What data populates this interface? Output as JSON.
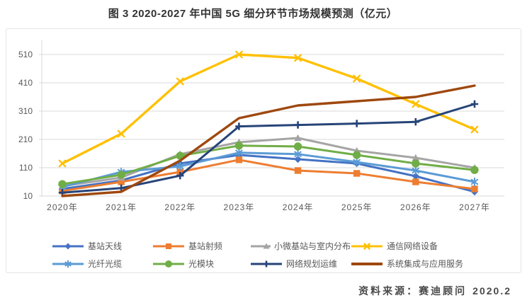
{
  "title": "图 3 2020-2027 年中国 5G 细分环节市场规模预测（亿元）",
  "source": {
    "prefix": "资料来源：",
    "org": "赛迪顾问",
    "date": "2020.2"
  },
  "chart_data": {
    "type": "line",
    "title": "图 3 2020-2027 年中国 5G 细分环节市场规模预测（亿元）",
    "unit": "亿元",
    "categories": [
      "2020年",
      "2021年",
      "2022年",
      "2023年",
      "2024年",
      "2025年",
      "2026年",
      "2027年"
    ],
    "y_ticks": [
      10,
      110,
      210,
      310,
      410,
      510
    ],
    "ylim": [
      10,
      560
    ],
    "grid": true,
    "legend_position": "bottom",
    "axis_color": "#d9d9d9",
    "series": [
      {
        "id": "base-station-antenna",
        "name": "基站天线",
        "color": "#4472C4",
        "marker": "diamond",
        "values": [
          35,
          65,
          125,
          155,
          140,
          125,
          80,
          25
        ]
      },
      {
        "id": "base-station-rf",
        "name": "基站射频",
        "color": "#ED7D31",
        "marker": "square",
        "values": [
          28,
          60,
          95,
          138,
          100,
          90,
          60,
          35
        ]
      },
      {
        "id": "small-micro-station-indoor",
        "name": "小微基站与室内分布",
        "color": "#A5A5A5",
        "marker": "triangle",
        "values": [
          45,
          75,
          158,
          200,
          215,
          170,
          145,
          110
        ]
      },
      {
        "id": "network-equipment",
        "name": "通信网络设备",
        "color": "#FFC000",
        "marker": "x",
        "values": [
          125,
          230,
          415,
          510,
          498,
          425,
          335,
          245
        ]
      },
      {
        "id": "optical-fiber-cable",
        "name": "光纤光缆",
        "color": "#5B9BD5",
        "marker": "asterisk",
        "values": [
          42,
          95,
          115,
          163,
          158,
          130,
          100,
          60
        ]
      },
      {
        "id": "optical-module",
        "name": "光模块",
        "color": "#70AD47",
        "marker": "circle",
        "values": [
          52,
          85,
          152,
          188,
          185,
          155,
          125,
          102
        ]
      },
      {
        "id": "network-planning-om",
        "name": "网络规划运维",
        "color": "#264478",
        "marker": "plus",
        "values": [
          22,
          38,
          82,
          256,
          261,
          266,
          272,
          335
        ]
      },
      {
        "id": "system-integration-services",
        "name": "系统集成与应用服务",
        "color": "#9E480E",
        "marker": "none",
        "values": [
          10,
          25,
          135,
          285,
          330,
          345,
          360,
          400
        ]
      }
    ]
  }
}
